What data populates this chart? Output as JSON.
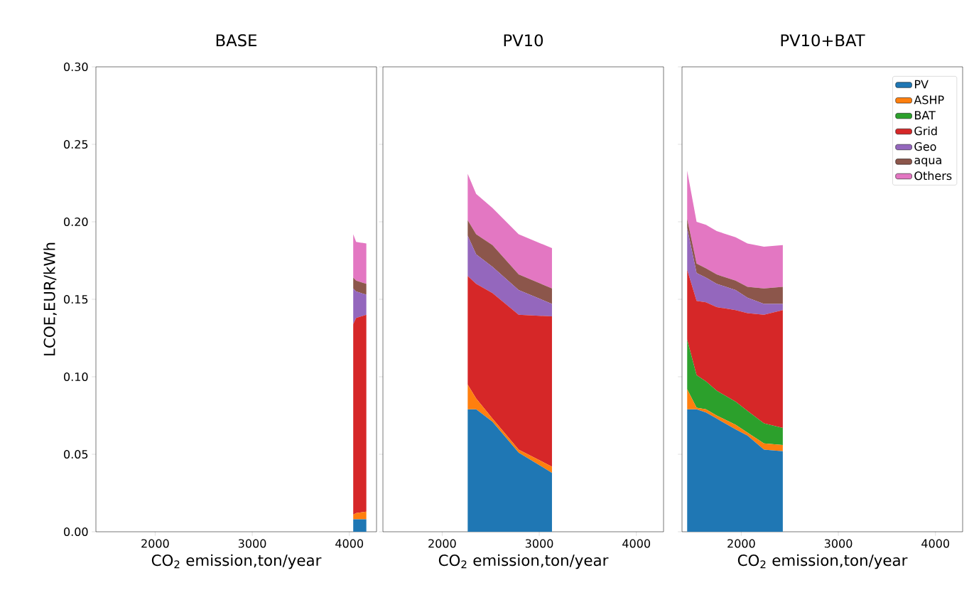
{
  "chart_data": [
    {
      "type": "area",
      "stacked": true,
      "title": "BASE",
      "xlabel": "CO$_{2}$ emission,ton/year",
      "ylabel": "LCOE,EUR/kWh",
      "xlim": [
        1390,
        4280
      ],
      "ylim": [
        0,
        0.3
      ],
      "xticks": [
        2000,
        3000,
        4000
      ],
      "yticks": [
        {
          "value": 0,
          "label": "0.00"
        },
        {
          "value": 0.05,
          "label": "0.05"
        },
        {
          "value": 0.1,
          "label": "0.10"
        },
        {
          "value": 0.15,
          "label": "0.15"
        },
        {
          "value": 0.2,
          "label": "0.20"
        },
        {
          "value": 0.25,
          "label": "0.25"
        },
        {
          "value": 0.3,
          "label": "0.30"
        }
      ],
      "x": [
        4040,
        4070,
        4175
      ],
      "series": [
        {
          "color": "#1f77b4",
          "values": [
            0.008,
            0.008,
            0.008
          ]
        },
        {
          "color": "#ff7f0e",
          "values": [
            0.003,
            0.004,
            0.005
          ]
        },
        {
          "color": "#d62728",
          "values": [
            0.123,
            0.126,
            0.127
          ]
        },
        {
          "color": "#9467bd",
          "values": [
            0.023,
            0.017,
            0.013
          ]
        },
        {
          "color": "#8c564b",
          "values": [
            0.007,
            0.007,
            0.007
          ]
        },
        {
          "color": "#e377c2",
          "values": [
            0.028,
            0.025,
            0.026
          ]
        }
      ]
    },
    {
      "type": "area",
      "stacked": true,
      "title": "PV10",
      "xlabel": "CO$_{2}$ emission,ton/year",
      "xlim": [
        1390,
        4280
      ],
      "ylim": [
        0,
        0.3
      ],
      "xticks": [
        2000,
        3000,
        4000
      ],
      "yticks": [
        {
          "value": 0,
          "label": null
        },
        {
          "value": 0.05,
          "label": null
        },
        {
          "value": 0.1,
          "label": null
        },
        {
          "value": 0.15,
          "label": null
        },
        {
          "value": 0.2,
          "label": null
        },
        {
          "value": 0.25,
          "label": null
        },
        {
          "value": 0.3,
          "label": null
        }
      ],
      "tick_labels": "x",
      "x": [
        2263,
        2350,
        2518,
        2788,
        3131
      ],
      "series": [
        {
          "color": "#1f77b4",
          "values": [
            0.079,
            0.079,
            0.071,
            0.051,
            0.038
          ]
        },
        {
          "color": "#ff7f0e",
          "values": [
            0.016,
            0.007,
            0.002,
            0.002,
            0.004
          ]
        },
        {
          "color": "#d62728",
          "values": [
            0.07,
            0.074,
            0.081,
            0.087,
            0.097
          ]
        },
        {
          "color": "#9467bd",
          "values": [
            0.026,
            0.019,
            0.017,
            0.016,
            0.008
          ]
        },
        {
          "color": "#8c564b",
          "values": [
            0.01,
            0.013,
            0.014,
            0.01,
            0.01
          ]
        },
        {
          "color": "#e377c2",
          "values": [
            0.03,
            0.026,
            0.024,
            0.026,
            0.026
          ]
        }
      ]
    },
    {
      "type": "area",
      "stacked": true,
      "title": "PV10+BAT",
      "xlabel": "CO$_{2}$ emission,ton/year",
      "xlim": [
        1390,
        4280
      ],
      "ylim": [
        0,
        0.3
      ],
      "xticks": [
        2000,
        3000,
        4000
      ],
      "yticks": [
        {
          "value": 0,
          "label": null
        },
        {
          "value": 0.05,
          "label": null
        },
        {
          "value": 0.1,
          "label": null
        },
        {
          "value": 0.15,
          "label": null
        },
        {
          "value": 0.2,
          "label": null
        },
        {
          "value": 0.25,
          "label": null
        },
        {
          "value": 0.3,
          "label": null
        }
      ],
      "tick_labels": "x",
      "legend": "top right",
      "x": [
        1443,
        1540,
        1637,
        1747,
        1942,
        2064,
        2234,
        2428
      ],
      "series": [
        {
          "name": "PV",
          "color": "#1f77b4",
          "values": [
            0.079,
            0.079,
            0.077,
            0.073,
            0.066,
            0.062,
            0.053,
            0.052
          ]
        },
        {
          "name": "ASHP",
          "color": "#ff7f0e",
          "values": [
            0.013,
            0.001,
            0.002,
            0.002,
            0.003,
            0.002,
            0.004,
            0.004
          ]
        },
        {
          "name": "BAT",
          "color": "#2ca02c",
          "values": [
            0.032,
            0.021,
            0.018,
            0.016,
            0.015,
            0.014,
            0.013,
            0.011
          ]
        },
        {
          "name": "Grid",
          "color": "#d62728",
          "values": [
            0.045,
            0.048,
            0.051,
            0.054,
            0.059,
            0.063,
            0.07,
            0.076
          ]
        },
        {
          "name": "Geo",
          "color": "#9467bd",
          "values": [
            0.027,
            0.018,
            0.016,
            0.015,
            0.013,
            0.01,
            0.007,
            0.004
          ]
        },
        {
          "name": "aqua",
          "color": "#8c564b",
          "values": [
            0.006,
            0.006,
            0.006,
            0.006,
            0.006,
            0.007,
            0.01,
            0.011
          ]
        },
        {
          "name": "Others",
          "color": "#e377c2",
          "values": [
            0.031,
            0.027,
            0.028,
            0.028,
            0.028,
            0.028,
            0.027,
            0.027
          ]
        }
      ]
    }
  ]
}
